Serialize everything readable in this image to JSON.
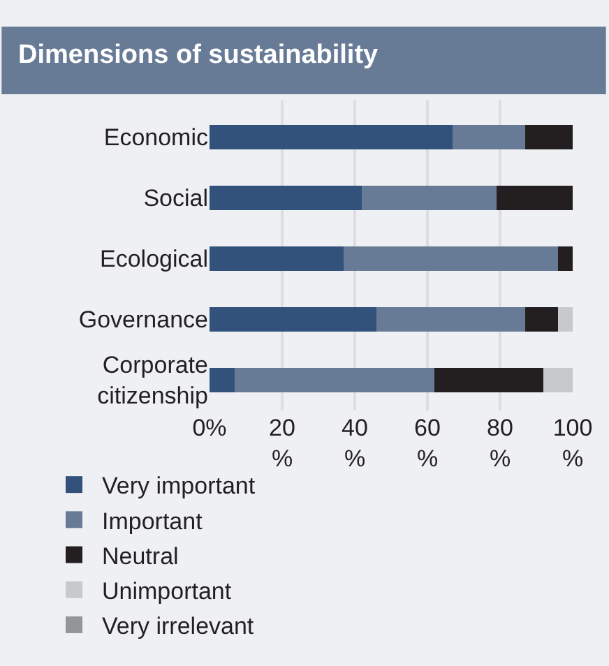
{
  "chart_data": {
    "type": "bar",
    "orientation": "horizontal",
    "stacked": true,
    "title": "Dimensions of sustainability",
    "categories": [
      "Economic",
      "Social",
      "Ecological",
      "Governance",
      "Corporate citizenship"
    ],
    "series": [
      {
        "name": "Very important",
        "color": "#32527b",
        "values": [
          67,
          42,
          37,
          46,
          7
        ]
      },
      {
        "name": "Important",
        "color": "#677b97",
        "values": [
          20,
          37,
          59,
          41,
          55
        ]
      },
      {
        "name": "Neutral",
        "color": "#231f20",
        "values": [
          13,
          21,
          4,
          9,
          30
        ]
      },
      {
        "name": "Unimportant",
        "color": "#c8c9cb",
        "values": [
          0,
          0,
          0,
          4,
          8
        ]
      },
      {
        "name": "Very irrelevant",
        "color": "#939598",
        "values": [
          0,
          0,
          0,
          0,
          0
        ]
      }
    ],
    "xlim": [
      0,
      100
    ],
    "xticks": [
      {
        "value": 0,
        "label": "0%"
      },
      {
        "value": 20,
        "label": "20 %"
      },
      {
        "value": 40,
        "label": "40 %"
      },
      {
        "value": 60,
        "label": "60 %"
      },
      {
        "value": 80,
        "label": "80 %"
      },
      {
        "value": 100,
        "label": "100 %"
      }
    ],
    "grid": "x",
    "legend": "bottom"
  }
}
